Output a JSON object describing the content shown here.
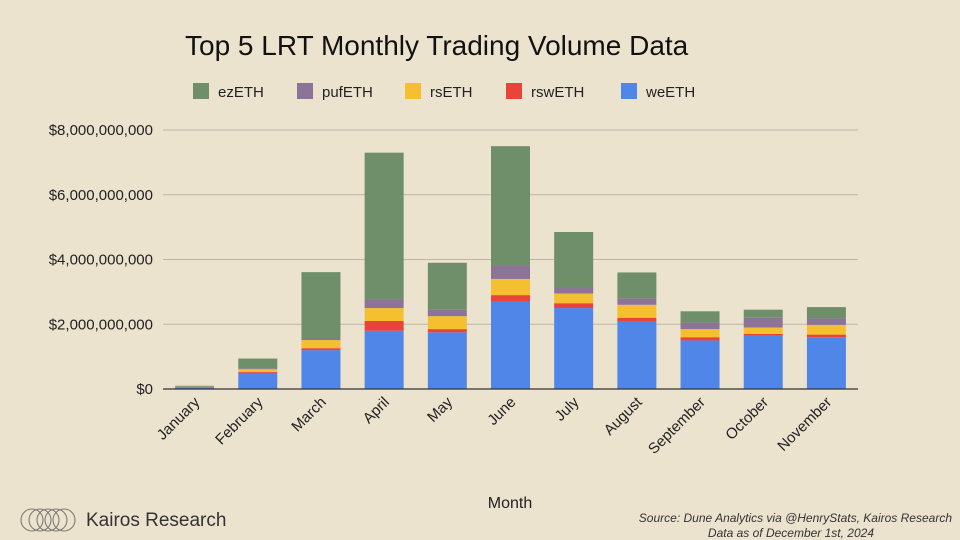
{
  "chart_data": {
    "type": "bar",
    "stacked": true,
    "title": "Top 5 LRT Monthly Trading Volume Data",
    "xlabel": "Month",
    "ylabel": "",
    "ylim": [
      0,
      8000000000
    ],
    "yticks": [
      "$0",
      "$2,000,000,000",
      "$4,000,000,000",
      "$6,000,000,000",
      "$8,000,000,000"
    ],
    "ytick_values": [
      0,
      2000000000,
      4000000000,
      6000000000,
      8000000000
    ],
    "legend_position": "top",
    "grid": true,
    "categories": [
      "January",
      "February",
      "March",
      "April",
      "May",
      "June",
      "July",
      "August",
      "September",
      "October",
      "November"
    ],
    "series": [
      {
        "name": "weETH",
        "color": "#4f86e8",
        "values": [
          50000000,
          500000000,
          1200000000,
          1800000000,
          1750000000,
          2700000000,
          2500000000,
          2100000000,
          1500000000,
          1650000000,
          1600000000
        ]
      },
      {
        "name": "rswETH",
        "color": "#e8443a",
        "values": [
          10000000,
          30000000,
          60000000,
          300000000,
          100000000,
          200000000,
          150000000,
          100000000,
          100000000,
          50000000,
          80000000
        ]
      },
      {
        "name": "rsETH",
        "color": "#f4c030",
        "values": [
          10000000,
          80000000,
          250000000,
          400000000,
          400000000,
          500000000,
          300000000,
          400000000,
          250000000,
          200000000,
          300000000
        ]
      },
      {
        "name": "pufETH",
        "color": "#8c7397",
        "values": [
          5000000,
          30000000,
          50000000,
          250000000,
          200000000,
          400000000,
          200000000,
          200000000,
          200000000,
          300000000,
          200000000
        ]
      },
      {
        "name": "ezETH",
        "color": "#6f8f6b",
        "values": [
          25000000,
          300000000,
          2050000000,
          4550000000,
          1450000000,
          3700000000,
          1700000000,
          800000000,
          350000000,
          250000000,
          350000000
        ]
      }
    ],
    "legend_order": [
      "ezETH",
      "pufETH",
      "rsETH",
      "rswETH",
      "weETH"
    ]
  },
  "footer": {
    "brand": "Kairos Research",
    "source_line1": "Source: Dune Analytics via @HenryStats, Kairos Research",
    "source_line2": "Data as of December 1st, 2024"
  }
}
